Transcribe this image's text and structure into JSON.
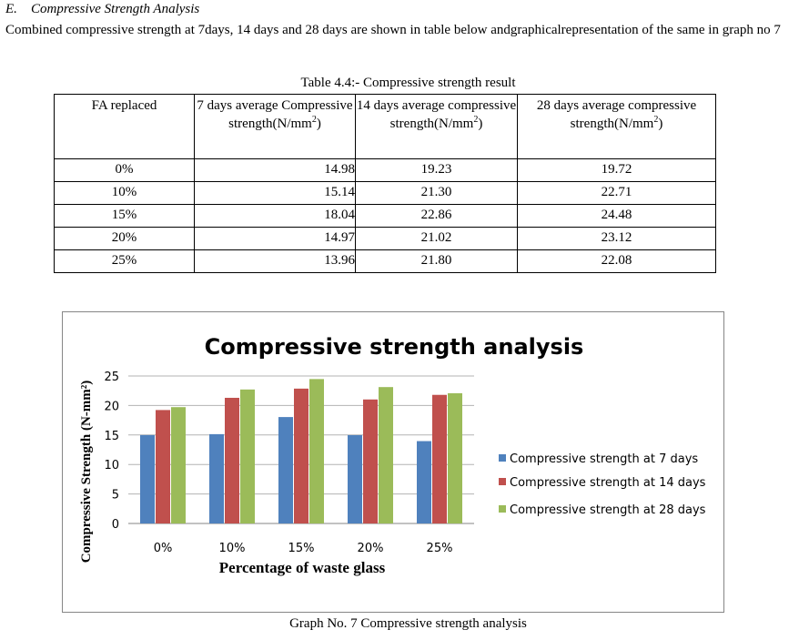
{
  "section": {
    "number": "E.",
    "title": "Compressive Strength Analysis"
  },
  "paragraph": "Combined compressive strength at 7days, 14 days and 28 days are shown in table below andgraphicalrepresentation of the same in graph no 7",
  "table": {
    "caption": "Table 4.4:- Compressive strength result",
    "headers": [
      "FA replaced",
      "7 days average Compressive strength(N/mm²)",
      "14 days average compressive strength(N/mm²)",
      "28 days average compressive strength(N/mm²)"
    ],
    "rows": [
      [
        "0%",
        "14.98",
        "19.23",
        "19.72"
      ],
      [
        "10%",
        "15.14",
        "21.30",
        "22.71"
      ],
      [
        "15%",
        "18.04",
        "22.86",
        "24.48"
      ],
      [
        "20%",
        "14.97",
        "21.02",
        "23.12"
      ],
      [
        "25%",
        "13.96",
        "21.80",
        "22.08"
      ]
    ]
  },
  "chart_data": {
    "type": "bar",
    "title": "Compressive strength analysis",
    "xlabel": "Percentage of waste glass",
    "ylabel": "Compressive Strength (N-mm²)",
    "categories": [
      "0%",
      "10%",
      "15%",
      "20%",
      "25%"
    ],
    "ylim": [
      0,
      25
    ],
    "yticks": [
      "0",
      "5",
      "10",
      "15",
      "20",
      "25"
    ],
    "grid": true,
    "legend_position": "right",
    "series": [
      {
        "name": "Compressive strength at 7 days",
        "color": "#4f81bd",
        "values": [
          14.98,
          15.14,
          18.04,
          14.97,
          13.96
        ]
      },
      {
        "name": "Compressive strength at 14 days",
        "color": "#c0504d",
        "values": [
          19.23,
          21.3,
          22.86,
          21.02,
          21.8
        ]
      },
      {
        "name": "Compressive strength at 28 days",
        "color": "#9bbb59",
        "values": [
          19.72,
          22.71,
          24.48,
          23.12,
          22.08
        ]
      }
    ]
  },
  "figure_caption": "Graph No. 7 Compressive strength analysis"
}
